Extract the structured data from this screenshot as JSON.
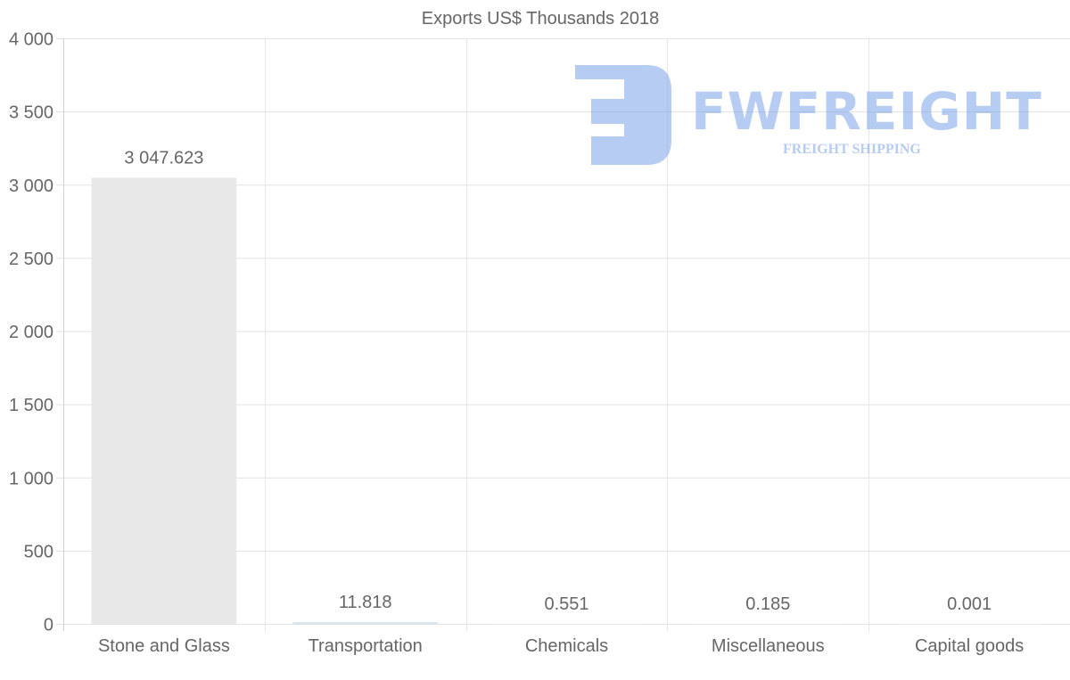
{
  "chart_data": {
    "type": "bar",
    "title": "Exports US$ Thousands 2018",
    "categories": [
      "Stone and Glass",
      "Transportation",
      "Chemicals",
      "Miscellaneous",
      "Capital goods"
    ],
    "values": [
      3047.623,
      11.818,
      0.551,
      0.185,
      0.001
    ],
    "data_labels": [
      "3 047.623",
      "11.818",
      "0.551",
      "0.185",
      "0.001"
    ],
    "ylim": [
      0,
      4000
    ],
    "yticks": [
      0,
      500,
      1000,
      1500,
      2000,
      2500,
      3000,
      3500,
      4000
    ],
    "ytick_labels": [
      "0",
      "500",
      "1 000",
      "1 500",
      "2 000",
      "2 500",
      "3 000",
      "3 500",
      "4 000"
    ],
    "xlabel": "",
    "ylabel": "",
    "grid": true,
    "bar_colors": [
      "#e8e8e8",
      "#d6e6f2",
      "#e8e8e8",
      "#e8e8e8",
      "#e8e8e8"
    ]
  },
  "watermark": {
    "brand": "FWFREIGHT",
    "tagline": "FREIGHT SHIPPING",
    "color": "#7ba3e8"
  }
}
